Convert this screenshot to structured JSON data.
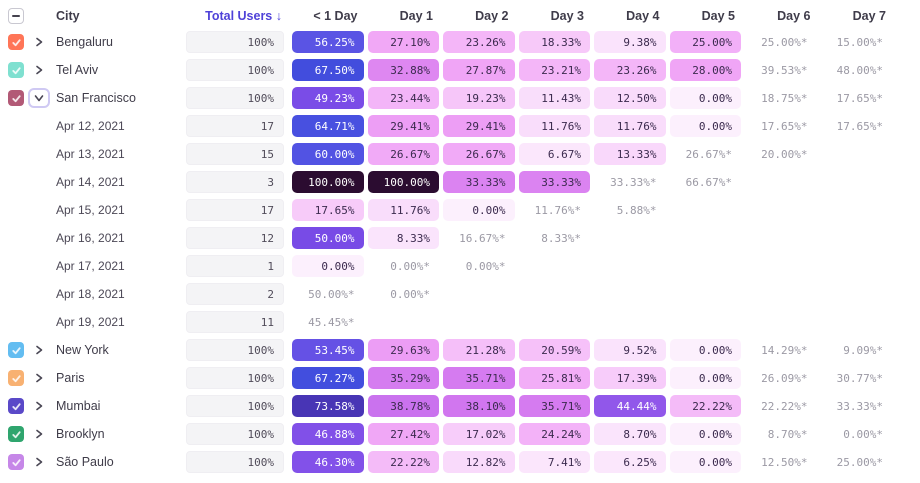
{
  "header": {
    "select_all_state": "indeterminate",
    "city_label": "City",
    "total_users_label": "Total Users",
    "sort_arrow": "↓",
    "day_columns": [
      "< 1 Day",
      "Day 1",
      "Day 2",
      "Day 3",
      "Day 4",
      "Day 5",
      "Day 6",
      "Day 7"
    ]
  },
  "colors": {
    "accent_sorted_header": "#4f42d8",
    "header_text": "#3f3c4a",
    "cell_text_dark": "#3b2a4e",
    "cell_text_light": "#ffffff",
    "white_text_threshold": 42,
    "partial_text": "#9b99a4",
    "total_cell_bg": "#f4f4f6",
    "expanded_chevron_ring": "#cfc9f3",
    "heat_stops": [
      [
        0,
        "#fcf0fd"
      ],
      [
        5,
        "#fbe9fc"
      ],
      [
        10,
        "#fae2fc"
      ],
      [
        15,
        "#f8d3fa"
      ],
      [
        20,
        "#f6c4f9"
      ],
      [
        24,
        "#f3b3f8"
      ],
      [
        28,
        "#f0a5f6"
      ],
      [
        31,
        "#e996f4"
      ],
      [
        34,
        "#d77ef0"
      ],
      [
        38,
        "#d277ef"
      ],
      [
        42,
        "#a85eec"
      ],
      [
        46,
        "#8352e9"
      ],
      [
        50,
        "#784be6"
      ],
      [
        55,
        "#5d54e4"
      ],
      [
        62,
        "#4d52e2"
      ],
      [
        68,
        "#414ddd"
      ],
      [
        74,
        "#4933b2"
      ],
      [
        85,
        "#391c6e"
      ],
      [
        100,
        "#2b0c30"
      ]
    ]
  },
  "rows": [
    {
      "type": "city",
      "name": "Bengaluru",
      "checkbox_color": "#ff7557",
      "checked": true,
      "expanded": false,
      "total": "100%",
      "cells": [
        {
          "v": 56.25
        },
        {
          "v": 27.1
        },
        {
          "v": 23.26
        },
        {
          "v": 18.33
        },
        {
          "v": 9.38
        },
        {
          "v": 25.0
        },
        {
          "v": 25.0,
          "partial": true
        },
        {
          "v": 15.0,
          "partial": true
        }
      ]
    },
    {
      "type": "city",
      "name": "Tel Aviv",
      "checkbox_color": "#7fe0d0",
      "checked": true,
      "expanded": false,
      "total": "100%",
      "cells": [
        {
          "v": 67.5
        },
        {
          "v": 32.88
        },
        {
          "v": 27.87
        },
        {
          "v": 23.21
        },
        {
          "v": 23.26
        },
        {
          "v": 28.0
        },
        {
          "v": 39.53,
          "partial": true
        },
        {
          "v": 48.0,
          "partial": true
        }
      ]
    },
    {
      "type": "city",
      "name": "San Francisco",
      "checkbox_color": "#b25976",
      "checked": true,
      "expanded": true,
      "total": "100%",
      "cells": [
        {
          "v": 49.23
        },
        {
          "v": 23.44
        },
        {
          "v": 19.23
        },
        {
          "v": 11.43
        },
        {
          "v": 12.5
        },
        {
          "v": 0.0
        },
        {
          "v": 18.75,
          "partial": true
        },
        {
          "v": 17.65,
          "partial": true
        }
      ]
    },
    {
      "type": "date",
      "name": "Apr 12, 2021",
      "total": "17",
      "cells": [
        {
          "v": 64.71
        },
        {
          "v": 29.41
        },
        {
          "v": 29.41
        },
        {
          "v": 11.76
        },
        {
          "v": 11.76
        },
        {
          "v": 0.0
        },
        {
          "v": 17.65,
          "partial": true
        },
        {
          "v": 17.65,
          "partial": true
        }
      ]
    },
    {
      "type": "date",
      "name": "Apr 13, 2021",
      "total": "15",
      "cells": [
        {
          "v": 60.0
        },
        {
          "v": 26.67
        },
        {
          "v": 26.67
        },
        {
          "v": 6.67
        },
        {
          "v": 13.33
        },
        {
          "v": 26.67,
          "partial": true
        },
        {
          "v": 20.0,
          "partial": true
        },
        null
      ]
    },
    {
      "type": "date",
      "name": "Apr 14, 2021",
      "total": "3",
      "cells": [
        {
          "v": 100.0
        },
        {
          "v": 100.0
        },
        {
          "v": 33.33
        },
        {
          "v": 33.33
        },
        {
          "v": 33.33,
          "partial": true
        },
        {
          "v": 66.67,
          "partial": true
        },
        null,
        null
      ]
    },
    {
      "type": "date",
      "name": "Apr 15, 2021",
      "total": "17",
      "cells": [
        {
          "v": 17.65
        },
        {
          "v": 11.76
        },
        {
          "v": 0.0
        },
        {
          "v": 11.76,
          "partial": true
        },
        {
          "v": 5.88,
          "partial": true
        },
        null,
        null,
        null
      ]
    },
    {
      "type": "date",
      "name": "Apr 16, 2021",
      "total": "12",
      "cells": [
        {
          "v": 50.0
        },
        {
          "v": 8.33
        },
        {
          "v": 16.67,
          "partial": true
        },
        {
          "v": 8.33,
          "partial": true
        },
        null,
        null,
        null,
        null
      ]
    },
    {
      "type": "date",
      "name": "Apr 17, 2021",
      "total": "1",
      "cells": [
        {
          "v": 0.0
        },
        {
          "v": 0.0,
          "partial": true
        },
        {
          "v": 0.0,
          "partial": true
        },
        null,
        null,
        null,
        null,
        null
      ]
    },
    {
      "type": "date",
      "name": "Apr 18, 2021",
      "total": "2",
      "cells": [
        {
          "v": 50.0,
          "partial": true
        },
        {
          "v": 0.0,
          "partial": true
        },
        null,
        null,
        null,
        null,
        null,
        null
      ]
    },
    {
      "type": "date",
      "name": "Apr 19, 2021",
      "total": "11",
      "cells": [
        {
          "v": 45.45,
          "partial": true
        },
        null,
        null,
        null,
        null,
        null,
        null,
        null
      ]
    },
    {
      "type": "city",
      "name": "New York",
      "checkbox_color": "#63bdf1",
      "checked": true,
      "expanded": false,
      "total": "100%",
      "cells": [
        {
          "v": 53.45
        },
        {
          "v": 29.63
        },
        {
          "v": 21.28
        },
        {
          "v": 20.59
        },
        {
          "v": 9.52
        },
        {
          "v": 0.0
        },
        {
          "v": 14.29,
          "partial": true
        },
        {
          "v": 9.09,
          "partial": true
        }
      ]
    },
    {
      "type": "city",
      "name": "Paris",
      "checkbox_color": "#f8b172",
      "checked": true,
      "expanded": false,
      "total": "100%",
      "cells": [
        {
          "v": 67.27
        },
        {
          "v": 35.29
        },
        {
          "v": 35.71
        },
        {
          "v": 25.81
        },
        {
          "v": 17.39
        },
        {
          "v": 0.0
        },
        {
          "v": 26.09,
          "partial": true
        },
        {
          "v": 30.77,
          "partial": true
        }
      ]
    },
    {
      "type": "city",
      "name": "Mumbai",
      "checkbox_color": "#5a49c8",
      "checked": true,
      "expanded": false,
      "total": "100%",
      "cells": [
        {
          "v": 73.58
        },
        {
          "v": 38.78
        },
        {
          "v": 38.1
        },
        {
          "v": 35.71
        },
        {
          "v": 44.44
        },
        {
          "v": 22.22
        },
        {
          "v": 22.22,
          "partial": true
        },
        {
          "v": 33.33,
          "partial": true
        }
      ]
    },
    {
      "type": "city",
      "name": "Brooklyn",
      "checkbox_color": "#2fa56e",
      "checked": true,
      "expanded": false,
      "total": "100%",
      "cells": [
        {
          "v": 46.88
        },
        {
          "v": 27.42
        },
        {
          "v": 17.02
        },
        {
          "v": 24.24
        },
        {
          "v": 8.7
        },
        {
          "v": 0.0
        },
        {
          "v": 8.7,
          "partial": true
        },
        {
          "v": 0.0,
          "partial": true
        }
      ]
    },
    {
      "type": "city",
      "name": "São Paulo",
      "checkbox_color": "#c687e8",
      "checked": true,
      "expanded": false,
      "total": "100%",
      "cells": [
        {
          "v": 46.3
        },
        {
          "v": 22.22
        },
        {
          "v": 12.82
        },
        {
          "v": 7.41
        },
        {
          "v": 6.25
        },
        {
          "v": 0.0
        },
        {
          "v": 12.5,
          "partial": true
        },
        {
          "v": 25.0,
          "partial": true
        }
      ]
    }
  ]
}
